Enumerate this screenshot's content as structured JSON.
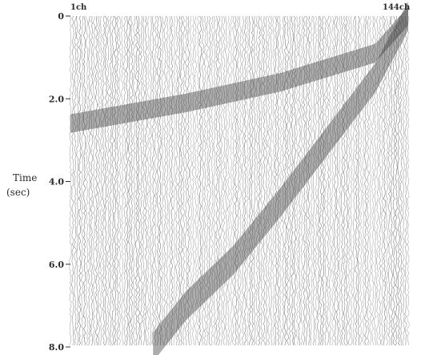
{
  "chart_data": {
    "type": "heatmap",
    "title": "",
    "xlabel": "",
    "ylabel": "Time",
    "ylabel_unit": "(sec)",
    "x_label_start": "1ch",
    "x_label_end": "144ch",
    "x_channels": [
      1,
      144
    ],
    "y_ticks": [
      "0",
      "2.0",
      "4.0",
      "6.0",
      "8.0"
    ],
    "y_tick_values": [
      0,
      2,
      4,
      6,
      8
    ],
    "ylim": [
      0,
      8
    ],
    "y_inverted": true,
    "grid": false,
    "description_of_marks": "wiggle-trace seismic record; dark coherent bands are dispersive arrivals",
    "bands": [
      {
        "name": "",
        "points": [
          [
            144,
            0.0
          ],
          [
            130,
            0.9
          ],
          [
            90,
            1.6
          ],
          [
            50,
            2.1
          ],
          [
            1,
            2.6
          ]
        ],
        "thickness_sec": 0.45
      },
      {
        "name": "",
        "points": [
          [
            144,
            0.0
          ],
          [
            130,
            1.5
          ],
          [
            110,
            3.0
          ],
          [
            90,
            4.5
          ],
          [
            70,
            5.9
          ],
          [
            50,
            7.0
          ],
          [
            36,
            8.0
          ]
        ],
        "thickness_sec": 0.7
      }
    ],
    "colors": {
      "trace": "#6a6a6a",
      "background": "#ffffff",
      "band": "#3a3a3a"
    }
  }
}
